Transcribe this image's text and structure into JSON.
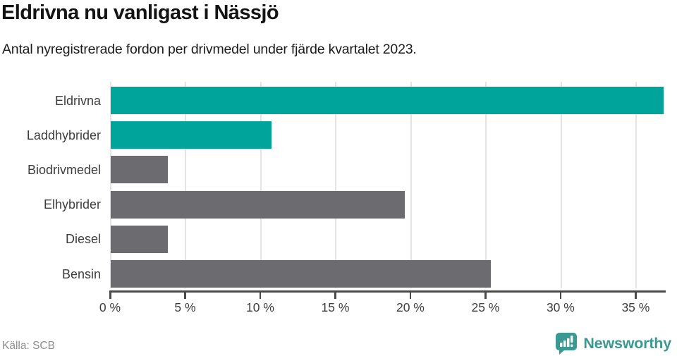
{
  "header": {
    "title": "Eldrivna nu vanligast i Nässjö",
    "subtitle": "Antal nyregistrerade fordon per drivmedel under fjärde kvartalet 2023."
  },
  "footer": {
    "source": "Källa: SCB",
    "brand_name": "Newsworthy"
  },
  "colors": {
    "highlight_bar": "#00a49b",
    "default_bar": "#6c6b70",
    "gridline": "#e4e4e6",
    "axis": "#4a4a4a",
    "brand_teal": "#3a9a93"
  },
  "chart_data": {
    "type": "bar",
    "orientation": "horizontal",
    "title": "Eldrivna nu vanligast i Nässjö",
    "subtitle": "Antal nyregistrerade fordon per drivmedel under fjärde kvartalet 2023.",
    "categories": [
      "Eldrivna",
      "Laddhybrider",
      "Biodrivmedel",
      "Elhybrider",
      "Diesel",
      "Bensin"
    ],
    "values": [
      36.8,
      10.7,
      3.8,
      19.6,
      3.8,
      25.3
    ],
    "unit": "%",
    "bar_colors": [
      "#00a49b",
      "#00a49b",
      "#6c6b70",
      "#6c6b70",
      "#6c6b70",
      "#6c6b70"
    ],
    "xlabel": "",
    "ylabel": "",
    "xlim": [
      0,
      37
    ],
    "x_ticks": [
      0,
      5,
      10,
      15,
      20,
      25,
      30,
      35
    ],
    "x_tick_labels": [
      "0 %",
      "5 %",
      "10 %",
      "15 %",
      "20 %",
      "25 %",
      "30 %",
      "35 %"
    ],
    "grid": "vertical",
    "legend": "none",
    "value_labels": "none",
    "source": "Källa: SCB"
  }
}
